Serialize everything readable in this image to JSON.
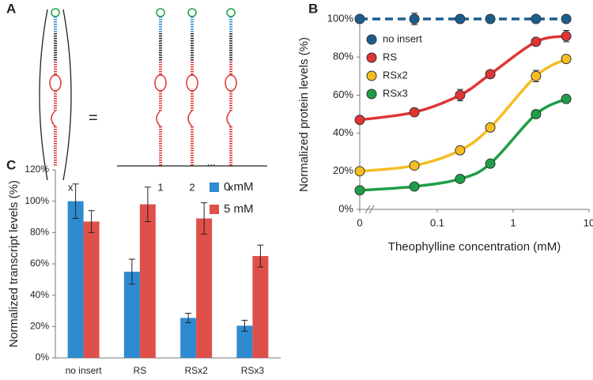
{
  "diagram": {
    "label": "A",
    "repeat": "x",
    "equals": "=",
    "positions": [
      "1",
      "2",
      "x"
    ],
    "ellipsis": "..."
  },
  "chart_data": [
    {
      "type": "scatter-line",
      "label": "B",
      "xscale": "log",
      "axis_break": true,
      "x_label": "Theophylline concentration (mM)",
      "y_label": "Normalized protein levels (%)",
      "x": [
        0,
        0.05,
        0.2,
        0.5,
        2,
        5
      ],
      "xlim": [
        0,
        10
      ],
      "xticks": [
        0,
        0.1,
        1,
        10
      ],
      "ylim": [
        0,
        100
      ],
      "yticks": [
        {
          "value": 0,
          "label": "0%"
        },
        {
          "value": 20,
          "label": "20%"
        },
        {
          "value": 40,
          "label": "40%"
        },
        {
          "value": 60,
          "label": "60%"
        },
        {
          "value": 80,
          "label": "80%"
        },
        {
          "value": 100,
          "label": "100%"
        }
      ],
      "grid": false,
      "legend": "upper-left",
      "series": [
        {
          "name": "no insert",
          "color": "#1b5e8e",
          "dashed": true,
          "values": [
            100,
            100,
            100,
            100,
            100,
            100
          ],
          "errors": [
            1,
            3,
            2,
            2,
            1,
            1
          ]
        },
        {
          "name": "RS",
          "color": "#e03535",
          "values": [
            47,
            51,
            60,
            71,
            88,
            91
          ],
          "errors": [
            1,
            2,
            3,
            1,
            1,
            3
          ]
        },
        {
          "name": "RSx2",
          "color": "#f5bd22",
          "values": [
            20,
            23,
            31,
            43,
            70,
            79
          ],
          "errors": [
            1,
            1,
            1,
            1,
            3,
            2
          ]
        },
        {
          "name": "RSx3",
          "color": "#1e9e48",
          "values": [
            10,
            12,
            16,
            24,
            50,
            58
          ],
          "errors": [
            1,
            1,
            1,
            1,
            1,
            1
          ]
        }
      ]
    },
    {
      "type": "bar",
      "label": "C",
      "y_label": "Normalized transcript levels (%)",
      "categories": [
        "no insert",
        "RS",
        "RSx2",
        "RSx3"
      ],
      "ylim": [
        0,
        120
      ],
      "yticks": [
        {
          "value": 0,
          "label": "0%"
        },
        {
          "value": 20,
          "label": "20%"
        },
        {
          "value": 40,
          "label": "40%"
        },
        {
          "value": 60,
          "label": "60%"
        },
        {
          "value": 80,
          "label": "80%"
        },
        {
          "value": 100,
          "label": "100%"
        },
        {
          "value": 120,
          "label": "120%"
        }
      ],
      "grid": false,
      "legend": "upper-right",
      "series": [
        {
          "name": "0 mM",
          "color": "#2e8bcf",
          "values": [
            100,
            55,
            25.5,
            20.5
          ],
          "errors": [
            11,
            8,
            3,
            3.5
          ]
        },
        {
          "name": "5 mM",
          "color": "#e0504a",
          "values": [
            87,
            98,
            89,
            65
          ],
          "errors": [
            7,
            11,
            10,
            7
          ]
        }
      ]
    }
  ]
}
